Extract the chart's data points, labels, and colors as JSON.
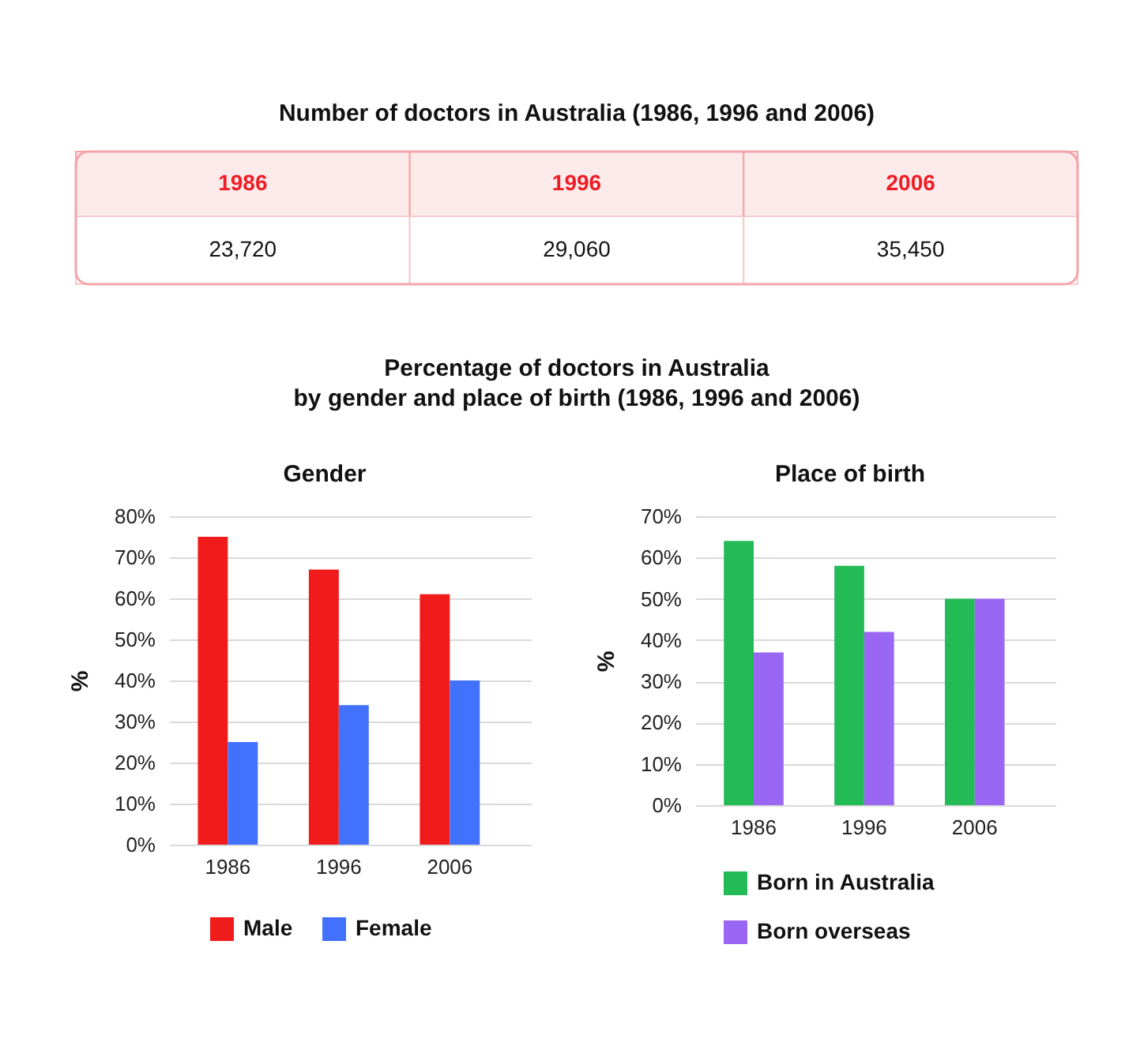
{
  "chart_data": [
    {
      "type": "other",
      "title": "Number of doctors in Australia (1986, 1996 and 2006)",
      "categories": [
        "1986",
        "1996",
        "2006"
      ],
      "values": [
        23720,
        29060,
        35450
      ],
      "value_labels": [
        "23,720",
        "29,060",
        "35,450"
      ]
    },
    {
      "type": "other",
      "title": "Percentage of doctors in Australia\nby gender and place of birth (1986, 1996 and 2006)"
    },
    {
      "type": "bar",
      "title": "Gender",
      "categories": [
        "1986",
        "1996",
        "2006"
      ],
      "ylabel": "%",
      "ylim": [
        0,
        80
      ],
      "yticks": [
        {
          "value": 0,
          "label": "0%"
        },
        {
          "value": 10,
          "label": "10%"
        },
        {
          "value": 20,
          "label": "20%"
        },
        {
          "value": 30,
          "label": "30%"
        },
        {
          "value": 40,
          "label": "40%"
        },
        {
          "value": 50,
          "label": "50%"
        },
        {
          "value": 60,
          "label": "60%"
        },
        {
          "value": 70,
          "label": "70%"
        },
        {
          "value": 80,
          "label": "80%"
        }
      ],
      "series": [
        {
          "name": "Male",
          "color": "#f01b1b",
          "values": [
            75,
            67,
            61
          ]
        },
        {
          "name": "Female",
          "color": "#4271fe",
          "values": [
            25,
            34,
            40
          ]
        }
      ],
      "grid": "y",
      "legend": "bottom"
    },
    {
      "type": "bar",
      "title": "Place of birth",
      "categories": [
        "1986",
        "1996",
        "2006"
      ],
      "ylabel": "%",
      "ylim": [
        0,
        70
      ],
      "yticks": [
        {
          "value": 0,
          "label": "0%"
        },
        {
          "value": 10,
          "label": "10%"
        },
        {
          "value": 20,
          "label": "20%"
        },
        {
          "value": 30,
          "label": "30%"
        },
        {
          "value": 40,
          "label": "40%"
        },
        {
          "value": 50,
          "label": "50%"
        },
        {
          "value": 60,
          "label": "60%"
        },
        {
          "value": 70,
          "label": "70%"
        }
      ],
      "series": [
        {
          "name": "Born in Australia",
          "color": "#22bb55",
          "values": [
            64,
            58,
            50
          ]
        },
        {
          "name": "Born overseas",
          "color": "#9a66f4",
          "values": [
            37,
            42,
            50
          ]
        }
      ],
      "grid": "y",
      "legend": "bottom left"
    }
  ]
}
